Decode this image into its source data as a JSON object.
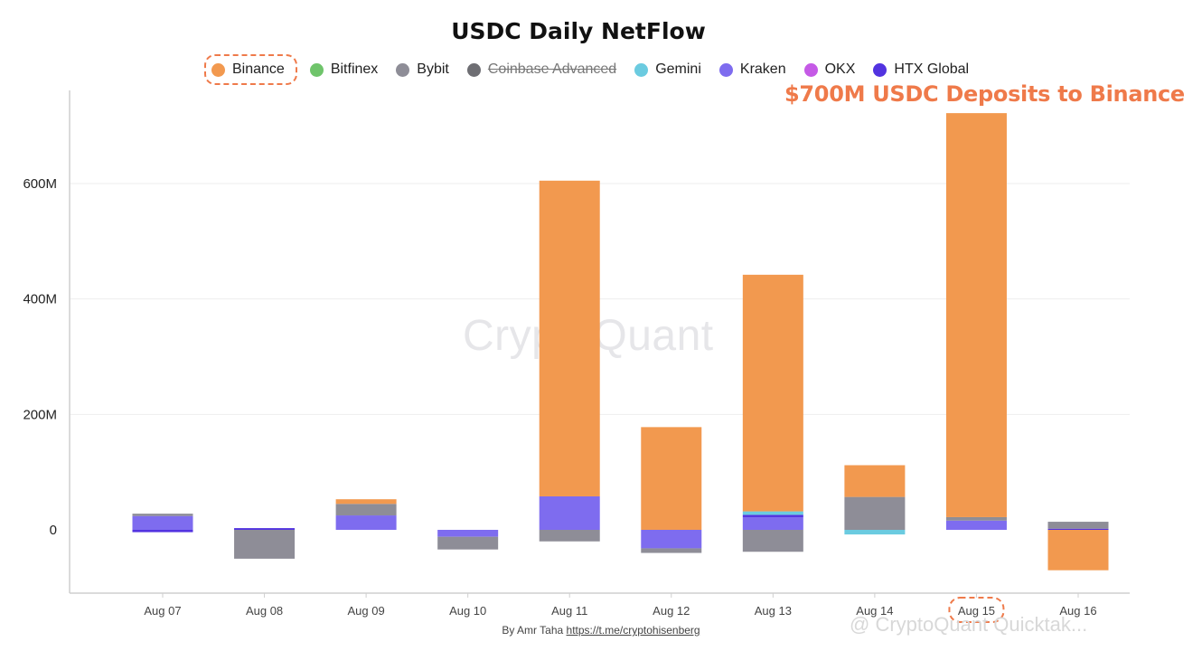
{
  "title": "USDC Daily NetFlow",
  "legend": [
    {
      "name": "Binance",
      "color": "#f2994f",
      "highlight": true,
      "disabled": false
    },
    {
      "name": "Bitfinex",
      "color": "#6fc46b",
      "highlight": false,
      "disabled": false
    },
    {
      "name": "Bybit",
      "color": "#8e8d97",
      "highlight": false,
      "disabled": false
    },
    {
      "name": "Coinbase Advanced",
      "color": "#6e6e73",
      "highlight": false,
      "disabled": true
    },
    {
      "name": "Gemini",
      "color": "#6bcbe0",
      "highlight": false,
      "disabled": false
    },
    {
      "name": "Kraken",
      "color": "#7e6cef",
      "highlight": false,
      "disabled": false
    },
    {
      "name": "OKX",
      "color": "#c55ae6",
      "highlight": false,
      "disabled": false
    },
    {
      "name": "HTX Global",
      "color": "#5233e0",
      "highlight": false,
      "disabled": false
    }
  ],
  "annotation": "$700M USDC Deposits to Binance",
  "highlighted_category": "Aug 15",
  "footer": {
    "author": "By Amr Taha",
    "link": "https://t.me/cryptohisenberg"
  },
  "watermark": "CryptoQuant",
  "watermark_corner": "@ CryptoQuant Quicktak...",
  "chart_data": {
    "type": "bar",
    "stacked": true,
    "categories": [
      "Aug 07",
      "Aug 08",
      "Aug 09",
      "Aug 10",
      "Aug 11",
      "Aug 12",
      "Aug 13",
      "Aug 14",
      "Aug 15",
      "Aug 16"
    ],
    "yticks": [
      0,
      200,
      400,
      600
    ],
    "ytick_labels": [
      "0",
      "200M",
      "400M",
      "600M"
    ],
    "ylim": [
      -110,
      760
    ],
    "unit": "M",
    "grid": true,
    "series": [
      {
        "name": "Kraken",
        "color": "#7e6cef",
        "values": [
          24,
          0,
          25,
          -12,
          58,
          -32,
          22,
          0,
          16,
          0
        ]
      },
      {
        "name": "HTX Global",
        "color": "#5233e0",
        "values": [
          -4,
          3,
          0,
          0,
          0,
          0,
          4,
          0,
          0,
          2
        ]
      },
      {
        "name": "Gemini",
        "color": "#6bcbe0",
        "values": [
          0,
          0,
          0,
          0,
          0,
          0,
          6,
          -8,
          0,
          0
        ]
      },
      {
        "name": "Bybit",
        "color": "#8e8d97",
        "values": [
          4,
          -50,
          20,
          -22,
          -20,
          -8,
          -38,
          57,
          6,
          12
        ]
      },
      {
        "name": "Binance",
        "color": "#f2994f",
        "values": [
          0,
          0,
          8,
          0,
          547,
          178,
          410,
          55,
          700,
          -70
        ]
      }
    ]
  }
}
